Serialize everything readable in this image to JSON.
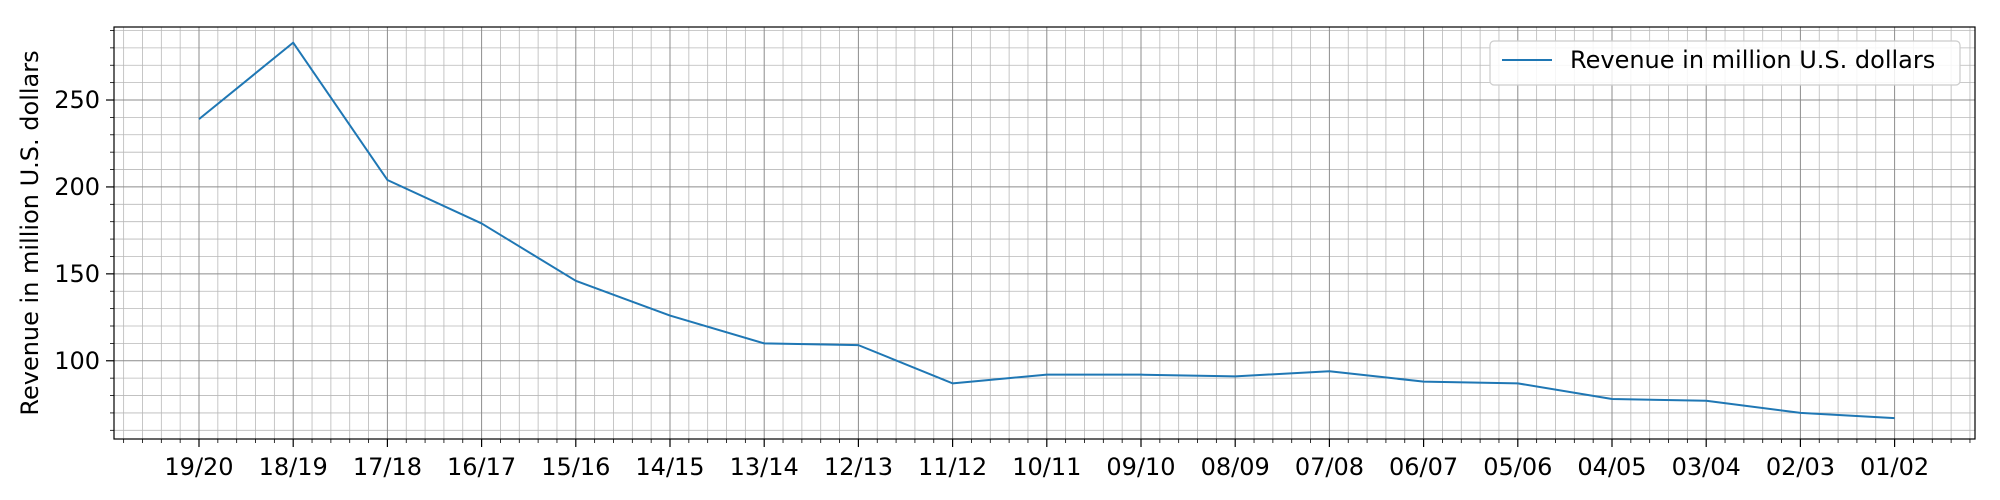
{
  "chart_data": {
    "type": "line",
    "title": "",
    "xlabel": "",
    "ylabel": "Revenue in million U.S. dollars",
    "categories": [
      "19/20",
      "18/19",
      "17/18",
      "16/17",
      "15/16",
      "14/15",
      "13/14",
      "12/13",
      "11/12",
      "10/11",
      "09/10",
      "08/09",
      "07/08",
      "06/07",
      "05/06",
      "04/05",
      "03/04",
      "02/03",
      "01/02"
    ],
    "series": [
      {
        "name": "Revenue in million U.S. dollars",
        "color": "#1f77b4",
        "values": [
          239,
          283,
          204,
          179,
          146,
          126,
          110,
          109,
          87,
          92,
          92,
          91,
          94,
          88,
          87,
          78,
          77,
          70,
          67
        ]
      }
    ],
    "yticks": [
      100,
      150,
      200,
      250
    ],
    "ylim": [
      55,
      292
    ],
    "grid": true,
    "legend_position": "top-right"
  }
}
